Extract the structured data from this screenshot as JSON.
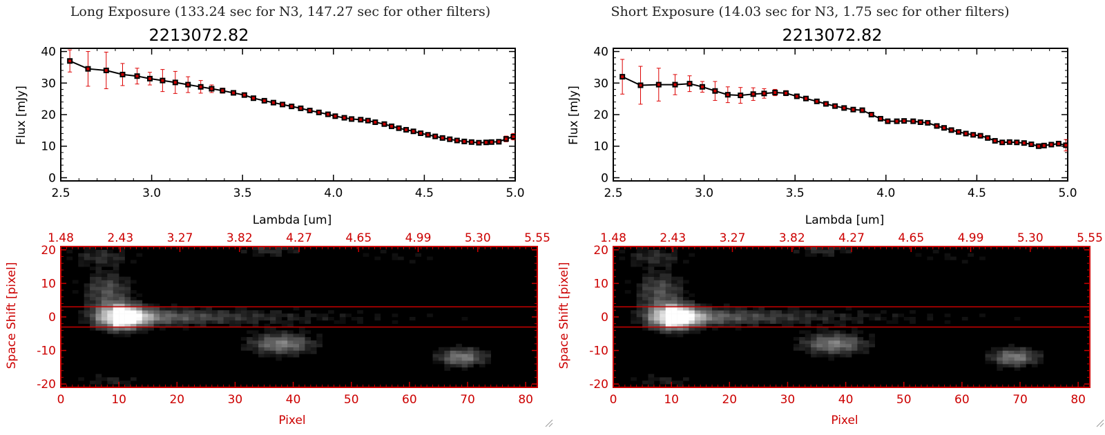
{
  "panels": [
    {
      "id": "long",
      "title": "Long Exposure (133.24 sec for N3, 147.27 sec for other filters)",
      "object_id": "2213072.82",
      "spectrum": {
        "type": "line",
        "xlabel": "Lambda [um]",
        "ylabel": "Flux [mJy]",
        "xlim": [
          2.5,
          5.0
        ],
        "ylim": [
          -1,
          41
        ],
        "x_ticks": [
          "2.5",
          "3.0",
          "3.5",
          "4.0",
          "4.5",
          "5.0"
        ],
        "y_ticks": [
          "0",
          "10",
          "20",
          "30",
          "40"
        ],
        "x": [
          2.55,
          2.65,
          2.75,
          2.84,
          2.92,
          2.99,
          3.06,
          3.13,
          3.2,
          3.27,
          3.33,
          3.39,
          3.45,
          3.51,
          3.56,
          3.62,
          3.67,
          3.72,
          3.77,
          3.82,
          3.87,
          3.92,
          3.97,
          4.01,
          4.06,
          4.1,
          4.15,
          4.19,
          4.23,
          4.28,
          4.32,
          4.36,
          4.4,
          4.44,
          4.48,
          4.52,
          4.56,
          4.6,
          4.64,
          4.68,
          4.72,
          4.76,
          4.8,
          4.84,
          4.87,
          4.91,
          4.95,
          4.99
        ],
        "y": [
          37,
          34.5,
          34,
          32.7,
          32.2,
          31.4,
          30.8,
          30.2,
          29.5,
          28.8,
          28.2,
          27.6,
          26.9,
          26.2,
          25.2,
          24.4,
          23.8,
          23.2,
          22.6,
          22,
          21.3,
          20.7,
          20.1,
          19.5,
          19,
          18.6,
          18.4,
          18.1,
          17.6,
          17,
          16.3,
          15.7,
          15.2,
          14.7,
          14.1,
          13.6,
          13.1,
          12.6,
          12.2,
          11.8,
          11.5,
          11.3,
          11.1,
          11.2,
          11.3,
          11.4,
          12.3,
          13
        ],
        "err": [
          3.5,
          5.5,
          5.8,
          3.5,
          2.5,
          2,
          3.5,
          3.5,
          2.5,
          2,
          1.2,
          0.8,
          0.7,
          0.6,
          0.5,
          0.4,
          0.4,
          0.4,
          0.4,
          0.4,
          0.4,
          0.3,
          0.3,
          0.3,
          0.3,
          0.3,
          0.3,
          0.3,
          0.3,
          0.3,
          0.3,
          0.3,
          0.3,
          0.3,
          0.3,
          0.3,
          0.3,
          0.3,
          0.3,
          0.3,
          0.3,
          0.3,
          0.5,
          0.5,
          0.5,
          0.6,
          0.9,
          1
        ]
      },
      "image": {
        "type": "heatmap",
        "xlabel": "Pixel",
        "ylabel": "Space Shift [pixel]",
        "xlim": [
          0,
          82
        ],
        "ylim": [
          -21,
          21
        ],
        "x_ticks": [
          "0",
          "10",
          "20",
          "30",
          "40",
          "50",
          "60",
          "70",
          "80"
        ],
        "y_ticks": [
          "-20",
          "-10",
          "0",
          "10",
          "20"
        ],
        "top_ticks": [
          "1.48",
          "2.43",
          "3.27",
          "3.82",
          "4.27",
          "4.65",
          "4.99",
          "5.30",
          "5.55"
        ],
        "aperture": [
          -3,
          3
        ]
      }
    },
    {
      "id": "short",
      "title": "Short Exposure (14.03 sec for N3, 1.75 sec for other filters)",
      "object_id": "2213072.82",
      "spectrum": {
        "type": "line",
        "xlabel": "Lambda [um]",
        "ylabel": "Flux [mJy]",
        "xlim": [
          2.5,
          5.0
        ],
        "ylim": [
          -1,
          41
        ],
        "x_ticks": [
          "2.5",
          "3.0",
          "3.5",
          "4.0",
          "4.5",
          "5.0"
        ],
        "y_ticks": [
          "0",
          "10",
          "20",
          "30",
          "40"
        ],
        "x": [
          2.55,
          2.65,
          2.75,
          2.84,
          2.92,
          2.99,
          3.06,
          3.13,
          3.2,
          3.27,
          3.33,
          3.39,
          3.45,
          3.51,
          3.56,
          3.62,
          3.67,
          3.72,
          3.77,
          3.82,
          3.87,
          3.92,
          3.97,
          4.01,
          4.06,
          4.1,
          4.15,
          4.19,
          4.23,
          4.28,
          4.32,
          4.36,
          4.4,
          4.44,
          4.48,
          4.52,
          4.56,
          4.6,
          4.64,
          4.68,
          4.72,
          4.76,
          4.8,
          4.84,
          4.87,
          4.91,
          4.95,
          4.99
        ],
        "y": [
          32,
          29.3,
          29.5,
          29.5,
          29.8,
          28.8,
          27.5,
          26.3,
          26.1,
          26.5,
          26.7,
          27,
          26.8,
          25.8,
          25.1,
          24.2,
          23.4,
          22.7,
          22.1,
          21.6,
          21.4,
          20,
          18.7,
          17.9,
          17.9,
          18,
          17.9,
          17.6,
          17.4,
          16.4,
          15.8,
          15.1,
          14.5,
          14,
          13.6,
          13.3,
          12.6,
          11.7,
          11.2,
          11.3,
          11.2,
          11,
          10.6,
          10,
          10.2,
          10.5,
          10.8,
          10.3
        ],
        "err": [
          5.5,
          6,
          5.2,
          3.2,
          2.5,
          1.7,
          3,
          2.5,
          2.5,
          2,
          1.5,
          1,
          0.8,
          0.6,
          0.5,
          0.4,
          0.4,
          0.4,
          0.4,
          0.4,
          0.4,
          0.3,
          0.3,
          0.3,
          0.3,
          0.3,
          0.3,
          0.3,
          0.3,
          0.3,
          0.3,
          0.3,
          0.3,
          0.3,
          0.3,
          0.3,
          0.3,
          0.3,
          0.3,
          0.3,
          0.3,
          0.3,
          0.5,
          0.5,
          0.5,
          0.6,
          0.8,
          1.8
        ]
      },
      "image": {
        "type": "heatmap",
        "xlabel": "Pixel",
        "ylabel": "Space Shift [pixel]",
        "xlim": [
          0,
          82
        ],
        "ylim": [
          -21,
          21
        ],
        "x_ticks": [
          "0",
          "10",
          "20",
          "30",
          "40",
          "50",
          "60",
          "70",
          "80"
        ],
        "y_ticks": [
          "-20",
          "-10",
          "0",
          "10",
          "20"
        ],
        "top_ticks": [
          "1.48",
          "2.43",
          "3.27",
          "3.82",
          "4.27",
          "4.65",
          "4.99",
          "5.30",
          "5.55"
        ],
        "aperture": [
          -3,
          3
        ]
      }
    }
  ],
  "colors": {
    "axis": "#000000",
    "marker": "#cc0000",
    "error_bar": "#dd0000",
    "image_frame": "#cc0000",
    "aperture_line": "#cc0000",
    "image_background": "#000000"
  }
}
